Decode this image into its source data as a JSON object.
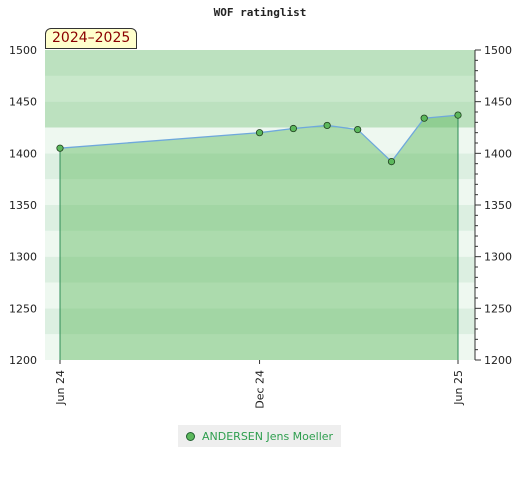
{
  "chart_data": {
    "type": "area",
    "title": "WOF ratinglist",
    "season_label": "2024–2025",
    "ylim": [
      1200,
      1500
    ],
    "y_ticks": [
      1200,
      1250,
      1300,
      1350,
      1400,
      1450,
      1500
    ],
    "x_ticks": [
      "Jun 24",
      "Dec 24",
      "Jun 25"
    ],
    "grid": true,
    "legend_position": "bottom-center",
    "series": [
      {
        "name": "ANDERSEN Jens Moeller",
        "color": "#5cb85c",
        "line_color": "#6fa8dc",
        "points": [
          {
            "x": "2024-06-01",
            "y": 1405
          },
          {
            "x": "2024-12-01",
            "y": 1420
          },
          {
            "x": "2025-01-01",
            "y": 1424
          },
          {
            "x": "2025-02-01",
            "y": 1427
          },
          {
            "x": "2025-03-01",
            "y": 1423
          },
          {
            "x": "2025-04-01",
            "y": 1392
          },
          {
            "x": "2025-05-01",
            "y": 1434
          },
          {
            "x": "2025-06-01",
            "y": 1437
          }
        ]
      }
    ]
  }
}
